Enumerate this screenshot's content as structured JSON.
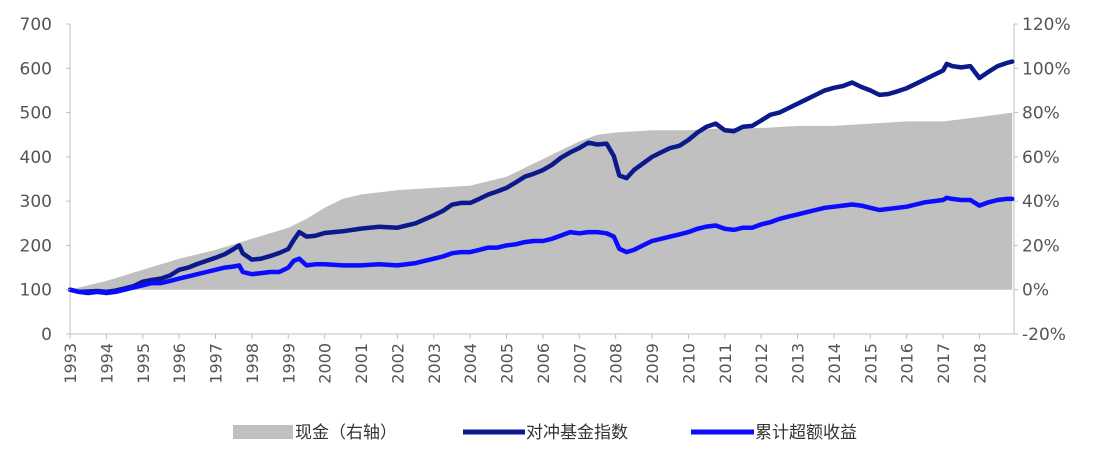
{
  "chart_data": {
    "type": "line",
    "title": "",
    "xlabel": "",
    "ylabel": "",
    "ylim": [
      0,
      700
    ],
    "y2lim": [
      -20,
      120
    ],
    "left_ticks": [
      "0",
      "100",
      "200",
      "300",
      "400",
      "500",
      "600",
      "700"
    ],
    "right_ticks": [
      "-20%",
      "0%",
      "20%",
      "40%",
      "60%",
      "80%",
      "100%",
      "120%"
    ],
    "x_ticks": [
      "1993",
      "1994",
      "1995",
      "1996",
      "1997",
      "1998",
      "1999",
      "2000",
      "2001",
      "2002",
      "2003",
      "2004",
      "2005",
      "2006",
      "2007",
      "2008",
      "2009",
      "2010",
      "2011",
      "2012",
      "2013",
      "2014",
      "2015",
      "2016",
      "2017",
      "2018"
    ],
    "legend_position": "bottom",
    "series": [
      {
        "name": "现金（右轴）",
        "kind": "area",
        "axis": "right",
        "color": "#c0c0c0",
        "x": [
          1993.0,
          1994.0,
          1995.0,
          1996.0,
          1997.0,
          1998.0,
          1999.0,
          1999.5,
          2000.0,
          2000.5,
          2001.0,
          2002.0,
          2003.0,
          2004.0,
          2005.0,
          2005.5,
          2006.0,
          2006.5,
          2007.0,
          2007.5,
          2008.0,
          2009.0,
          2010.0,
          2011.0,
          2012.0,
          2013.0,
          2014.0,
          2015.0,
          2016.0,
          2017.0,
          2017.5,
          2018.0,
          2018.9
        ],
        "values": [
          0,
          4,
          9,
          14,
          18,
          23,
          28,
          32,
          37,
          41,
          43,
          45,
          46,
          47,
          51,
          55,
          59,
          63,
          67,
          70,
          71,
          72,
          72,
          73,
          73,
          74,
          74,
          75,
          76,
          76,
          77,
          78,
          80
        ]
      },
      {
        "name": "对冲基金指数",
        "kind": "line",
        "axis": "left",
        "color": "#0a1a8c",
        "x": [
          1993.0,
          1993.25,
          1993.5,
          1993.75,
          1994.0,
          1994.25,
          1994.5,
          1994.75,
          1995.0,
          1995.25,
          1995.5,
          1995.75,
          1996.0,
          1996.25,
          1996.5,
          1996.75,
          1997.0,
          1997.25,
          1997.5,
          1997.65,
          1997.75,
          1998.0,
          1998.25,
          1998.5,
          1998.75,
          1999.0,
          1999.15,
          1999.3,
          1999.5,
          1999.75,
          2000.0,
          2000.5,
          2001.0,
          2001.5,
          2002.0,
          2002.5,
          2003.0,
          2003.25,
          2003.5,
          2003.75,
          2004.0,
          2004.25,
          2004.5,
          2004.75,
          2005.0,
          2005.25,
          2005.5,
          2005.75,
          2006.0,
          2006.25,
          2006.5,
          2006.75,
          2007.0,
          2007.25,
          2007.5,
          2007.75,
          2007.95,
          2008.1,
          2008.3,
          2008.5,
          2008.75,
          2009.0,
          2009.25,
          2009.5,
          2009.75,
          2010.0,
          2010.25,
          2010.5,
          2010.75,
          2011.0,
          2011.25,
          2011.5,
          2011.75,
          2012.0,
          2012.25,
          2012.5,
          2012.75,
          2013.0,
          2013.25,
          2013.5,
          2013.75,
          2014.0,
          2014.25,
          2014.5,
          2014.75,
          2015.0,
          2015.25,
          2015.5,
          2015.75,
          2016.0,
          2016.25,
          2016.5,
          2016.75,
          2017.0,
          2017.1,
          2017.25,
          2017.5,
          2017.75,
          2018.0,
          2018.25,
          2018.5,
          2018.75,
          2018.9
        ],
        "values": [
          100,
          95,
          96,
          97,
          95,
          98,
          103,
          108,
          118,
          122,
          125,
          132,
          145,
          150,
          158,
          165,
          172,
          180,
          192,
          200,
          182,
          168,
          170,
          176,
          183,
          192,
          212,
          230,
          220,
          222,
          228,
          232,
          238,
          242,
          240,
          250,
          268,
          278,
          292,
          296,
          296,
          305,
          315,
          322,
          330,
          342,
          355,
          362,
          370,
          382,
          398,
          410,
          420,
          432,
          428,
          430,
          402,
          358,
          352,
          370,
          385,
          400,
          410,
          420,
          425,
          438,
          455,
          468,
          475,
          460,
          458,
          468,
          470,
          482,
          495,
          500,
          510,
          520,
          530,
          540,
          550,
          556,
          560,
          568,
          558,
          550,
          540,
          542,
          548,
          555,
          565,
          575,
          585,
          595,
          610,
          605,
          602,
          605,
          578,
          592,
          605,
          612,
          615
        ]
      },
      {
        "name": "累计超额收益",
        "kind": "line",
        "axis": "right",
        "color": "#0b0bff",
        "x": [
          1993.0,
          1993.25,
          1993.5,
          1993.75,
          1994.0,
          1994.25,
          1994.5,
          1994.75,
          1995.0,
          1995.25,
          1995.5,
          1995.75,
          1996.0,
          1996.25,
          1996.5,
          1996.75,
          1997.0,
          1997.25,
          1997.5,
          1997.65,
          1997.75,
          1998.0,
          1998.25,
          1998.5,
          1998.75,
          1999.0,
          1999.15,
          1999.3,
          1999.5,
          1999.75,
          2000.0,
          2000.5,
          2001.0,
          2001.5,
          2002.0,
          2002.5,
          2003.0,
          2003.25,
          2003.5,
          2003.75,
          2004.0,
          2004.25,
          2004.5,
          2004.75,
          2005.0,
          2005.25,
          2005.5,
          2005.75,
          2006.0,
          2006.25,
          2006.5,
          2006.75,
          2007.0,
          2007.25,
          2007.5,
          2007.75,
          2007.95,
          2008.1,
          2008.3,
          2008.5,
          2008.75,
          2009.0,
          2009.25,
          2009.5,
          2009.75,
          2010.0,
          2010.25,
          2010.5,
          2010.75,
          2011.0,
          2011.25,
          2011.5,
          2011.75,
          2012.0,
          2012.25,
          2012.5,
          2012.75,
          2013.0,
          2013.25,
          2013.5,
          2013.75,
          2014.0,
          2014.25,
          2014.5,
          2014.75,
          2015.0,
          2015.25,
          2015.5,
          2015.75,
          2016.0,
          2016.25,
          2016.5,
          2016.75,
          2017.0,
          2017.1,
          2017.25,
          2017.5,
          2017.75,
          2018.0,
          2018.25,
          2018.5,
          2018.75,
          2018.9
        ],
        "values": [
          0,
          -1,
          -1.5,
          -1,
          -1.5,
          -1,
          0,
          1,
          2,
          3,
          3,
          4,
          5,
          6,
          7,
          8,
          9,
          10,
          10.5,
          11,
          8,
          7,
          7.5,
          8,
          8,
          10,
          13,
          14,
          11,
          11.5,
          11.5,
          11,
          11,
          11.5,
          11,
          12,
          14,
          15,
          16.5,
          17,
          17,
          18,
          19,
          19,
          20,
          20.5,
          21.5,
          22,
          22,
          23,
          24.5,
          26,
          25.5,
          26,
          26,
          25.5,
          24,
          18.5,
          17,
          18,
          20,
          22,
          23,
          24,
          25,
          26,
          27.5,
          28.5,
          29,
          27.5,
          27,
          28,
          28,
          29.5,
          30.5,
          32,
          33,
          34,
          35,
          36,
          37,
          37.5,
          38,
          38.5,
          38,
          37,
          36,
          36.5,
          37,
          37.5,
          38.5,
          39.5,
          40,
          40.5,
          41.5,
          41,
          40.5,
          40.5,
          38,
          39.5,
          40.5,
          41,
          41
        ]
      }
    ]
  }
}
